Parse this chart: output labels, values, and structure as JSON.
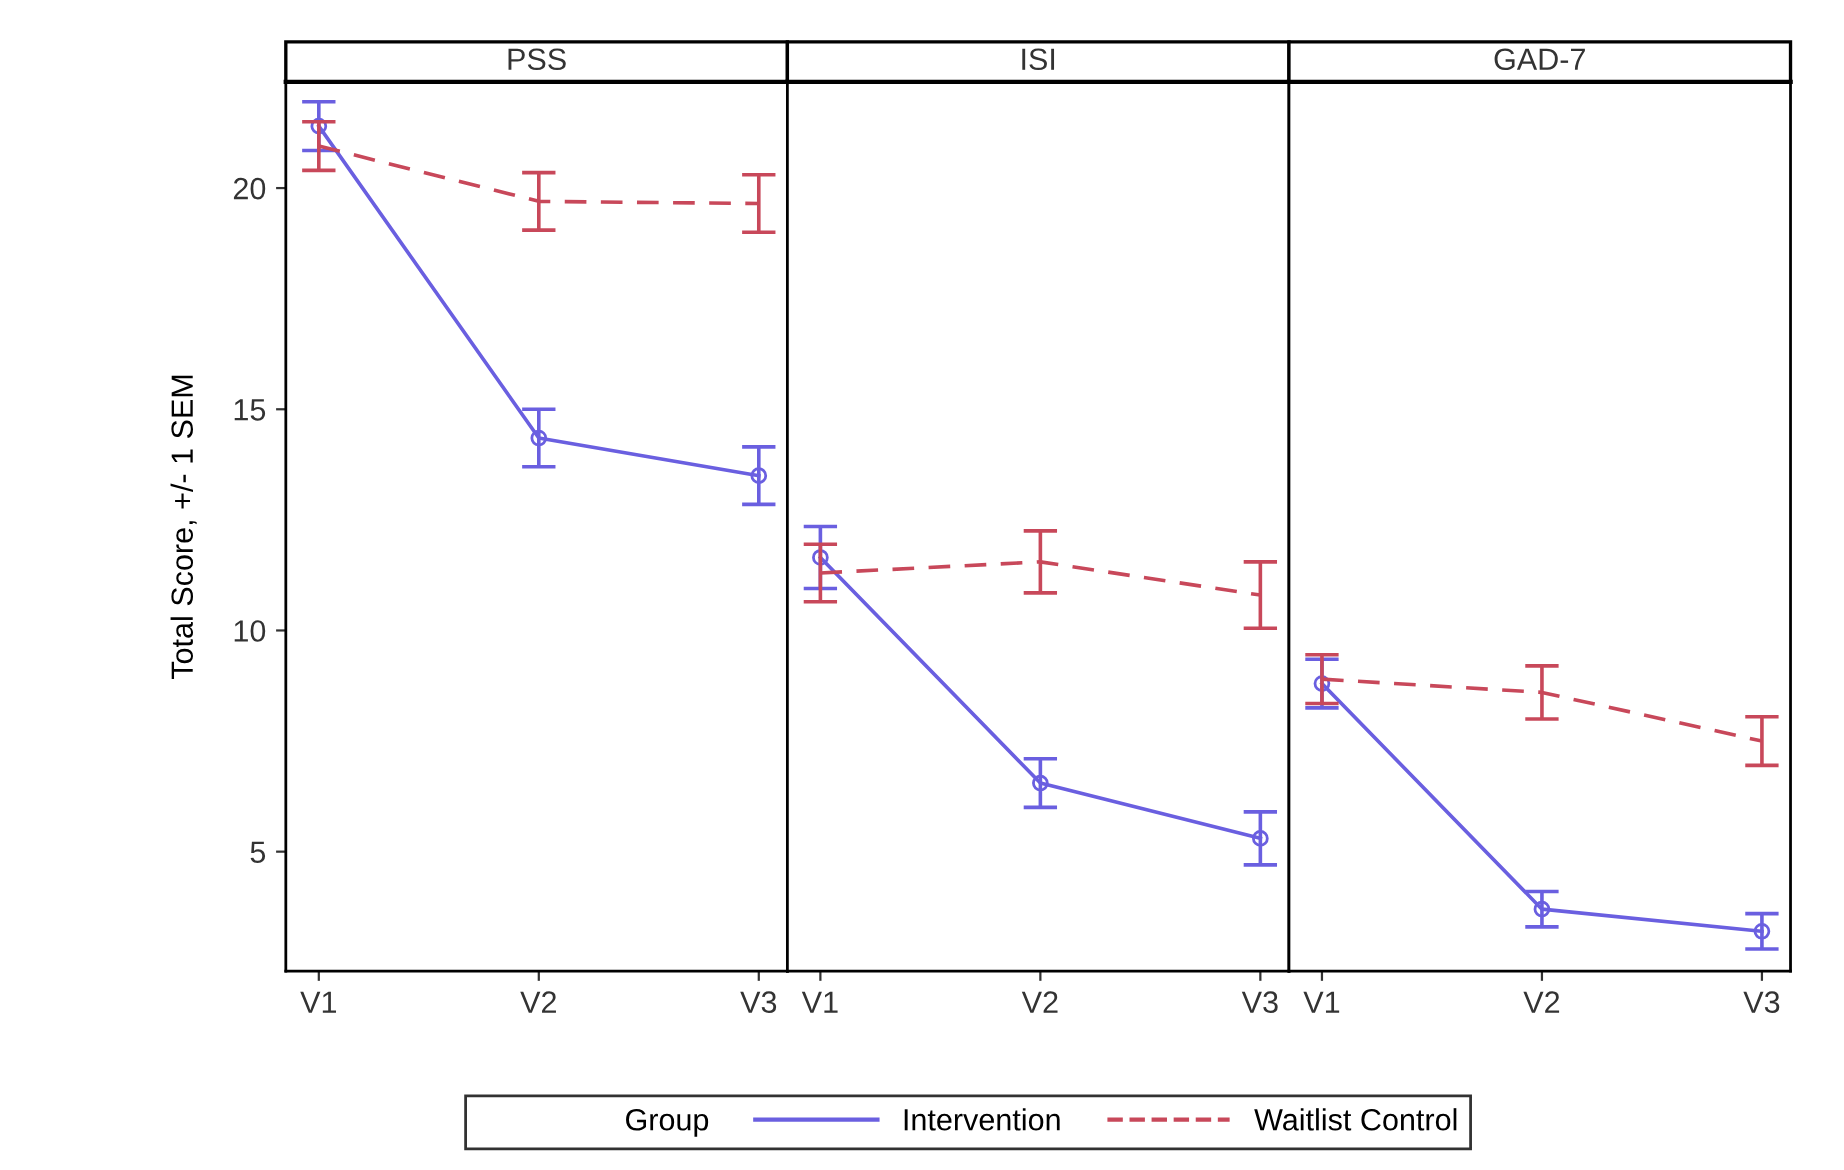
{
  "chart_data": [
    {
      "type": "line",
      "title": "PSS",
      "ylabel": "Total Score, +/- 1 SEM",
      "categories": [
        "V1",
        "V2",
        "V3"
      ],
      "ylim": [
        2.3,
        22.4
      ],
      "yticks": [
        5,
        10,
        15,
        20
      ],
      "legend": "bottom",
      "legend_title": "Group",
      "series": [
        {
          "name": "Intervention",
          "color": "#6a5fe0",
          "values": [
            21.4,
            14.35,
            13.5
          ],
          "errors": [
            0.55,
            0.65,
            0.65
          ],
          "marker": "circle",
          "line_style": "solid"
        },
        {
          "name": "Waitlist Control",
          "color": "#c8485a",
          "values": [
            20.95,
            19.7,
            19.65
          ],
          "errors": [
            0.55,
            0.65,
            0.65
          ],
          "marker": "none",
          "line_style": "dashed"
        }
      ]
    },
    {
      "type": "line",
      "title": "ISI",
      "categories": [
        "V1",
        "V2",
        "V3"
      ],
      "ylim": [
        2.3,
        22.4
      ],
      "yticks": [
        5,
        10,
        15,
        20
      ],
      "tick_labels": "x",
      "series": [
        {
          "color": "#6a5fe0",
          "values": [
            11.65,
            6.55,
            5.3
          ],
          "errors": [
            0.7,
            0.55,
            0.6
          ],
          "marker": "circle",
          "line_style": "solid"
        },
        {
          "color": "#c8485a",
          "values": [
            11.3,
            11.55,
            10.8
          ],
          "errors": [
            0.65,
            0.7,
            0.75
          ],
          "marker": "none",
          "line_style": "dashed"
        }
      ]
    },
    {
      "type": "line",
      "title": "GAD-7",
      "categories": [
        "V1",
        "V2",
        "V3"
      ],
      "ylim": [
        2.3,
        22.4
      ],
      "yticks": [
        5,
        10,
        15,
        20
      ],
      "tick_labels": "x",
      "series": [
        {
          "color": "#6a5fe0",
          "values": [
            8.8,
            3.7,
            3.2
          ],
          "errors": [
            0.55,
            0.4,
            0.4
          ],
          "marker": "circle",
          "line_style": "solid"
        },
        {
          "color": "#c8485a",
          "values": [
            8.9,
            8.6,
            7.5
          ],
          "errors": [
            0.55,
            0.6,
            0.55
          ],
          "marker": "none",
          "line_style": "dashed"
        }
      ]
    }
  ]
}
